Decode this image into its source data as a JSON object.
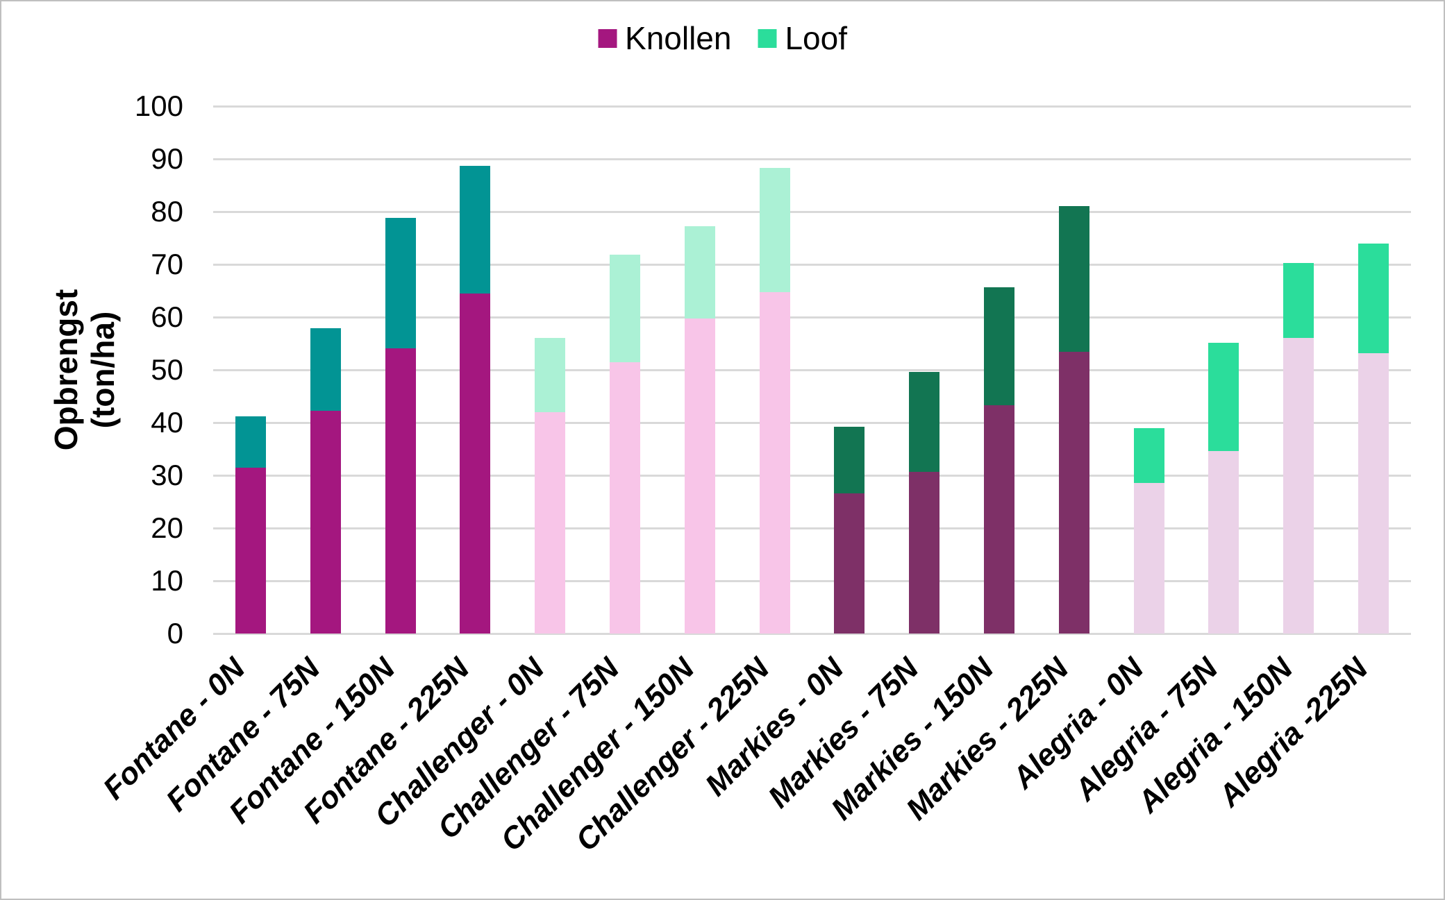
{
  "page": {
    "background": "#FFFFFF",
    "border_color": "#BFBFBF",
    "gridline_color": "#D9D9D9"
  },
  "legend": {
    "items": [
      {
        "label": "Knollen",
        "color": "#A4177F"
      },
      {
        "label": "Loof",
        "color": "#2BDD9B"
      }
    ]
  },
  "y_axis": {
    "title_line1": "Opbrengst",
    "title_line2": "(ton/ha)",
    "min": 0,
    "max": 100,
    "step": 10,
    "tick_labels": [
      "0",
      "10",
      "20",
      "30",
      "40",
      "50",
      "60",
      "70",
      "80",
      "90",
      "100"
    ]
  },
  "chart_data": {
    "type": "bar",
    "stacked": true,
    "title": "",
    "xlabel": "",
    "ylabel": "Opbrengst (ton/ha)",
    "ylim": [
      0,
      100
    ],
    "grid": true,
    "legend_position": "top-center",
    "categories": [
      "Fontane - 0N",
      "Fontane - 75N",
      "Fontane - 150N",
      "Fontane - 225N",
      "Challenger - 0N",
      "Challenger - 75N",
      "Challenger - 150N",
      "Challenger - 225N",
      "Markies - 0N",
      "Markies - 75N",
      "Markies - 150N",
      "Markies - 225N",
      "Alegria - 0N",
      "Alegria - 75N",
      "Alegria - 150N",
      "Alegria -225N"
    ],
    "series": [
      {
        "name": "Knollen",
        "values": [
          31.5,
          42.2,
          54.1,
          64.5,
          42.0,
          51.5,
          59.8,
          64.8,
          26.6,
          30.6,
          43.3,
          53.4,
          28.5,
          34.6,
          56.1,
          53.2
        ]
      },
      {
        "name": "Loof",
        "values": [
          9.7,
          15.7,
          24.7,
          24.2,
          14.1,
          20.4,
          17.4,
          23.5,
          12.6,
          19.0,
          22.3,
          27.7,
          10.4,
          20.5,
          14.1,
          20.7
        ]
      }
    ],
    "totals": [
      41.2,
      57.9,
      78.8,
      88.7,
      56.1,
      71.9,
      77.2,
      88.3,
      39.2,
      49.6,
      65.6,
      81.1,
      38.9,
      55.1,
      70.2,
      73.9
    ],
    "group_colors": {
      "Fontane": {
        "knollen": "#A4177F",
        "loof": "#029494"
      },
      "Challenger": {
        "knollen": "#F8C5E8",
        "loof": "#ABF1D5"
      },
      "Markies": {
        "knollen": "#7E3067",
        "loof": "#127552"
      },
      "Alegria": {
        "knollen": "#EBD2E8",
        "loof": "#2BDD9B"
      }
    }
  }
}
